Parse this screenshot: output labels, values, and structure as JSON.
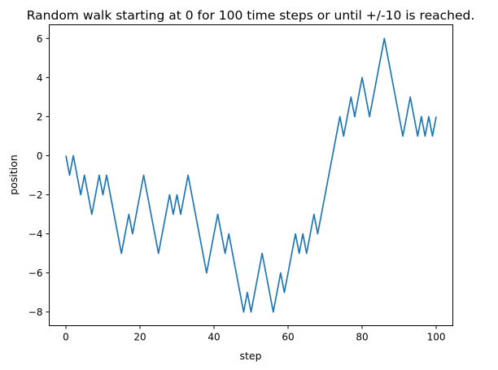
{
  "chart_data": {
    "type": "line",
    "title": "Random walk starting at 0 for 100 time steps or until +/-10 is reached.",
    "xlabel": "step",
    "ylabel": "position",
    "xlim": [
      -4.5,
      104.5
    ],
    "ylim": [
      -8.7,
      6.7
    ],
    "xticks": [
      0,
      20,
      40,
      60,
      80,
      100
    ],
    "xtick_labels": [
      "0",
      "20",
      "40",
      "60",
      "80",
      "100"
    ],
    "yticks": [
      -8,
      -6,
      -4,
      -2,
      0,
      2,
      4,
      6
    ],
    "ytick_labels": [
      "−8",
      "−6",
      "−4",
      "−2",
      "0",
      "2",
      "4",
      "6"
    ],
    "grid": false,
    "legend": "none",
    "series": [
      {
        "color": "#1f77b4",
        "x": [
          0,
          1,
          2,
          3,
          4,
          5,
          6,
          7,
          8,
          9,
          10,
          11,
          12,
          13,
          14,
          15,
          16,
          17,
          18,
          19,
          20,
          21,
          22,
          23,
          24,
          25,
          26,
          27,
          28,
          29,
          30,
          31,
          32,
          33,
          34,
          35,
          36,
          37,
          38,
          39,
          40,
          41,
          42,
          43,
          44,
          45,
          46,
          47,
          48,
          49,
          50,
          51,
          52,
          53,
          54,
          55,
          56,
          57,
          58,
          59,
          60,
          61,
          62,
          63,
          64,
          65,
          66,
          67,
          68,
          69,
          70,
          71,
          72,
          73,
          74,
          75,
          76,
          77,
          78,
          79,
          80,
          81,
          82,
          83,
          84,
          85,
          86,
          87,
          88,
          89,
          90,
          91,
          92,
          93,
          94,
          95,
          96,
          97,
          98,
          99,
          100
        ],
        "values": [
          0,
          -1,
          0,
          -1,
          -2,
          -1,
          -2,
          -3,
          -2,
          -1,
          -2,
          -1,
          -2,
          -3,
          -4,
          -5,
          -4,
          -3,
          -4,
          -3,
          -2,
          -1,
          -2,
          -3,
          -4,
          -5,
          -4,
          -3,
          -2,
          -3,
          -2,
          -3,
          -2,
          -1,
          -2,
          -3,
          -4,
          -5,
          -6,
          -5,
          -4,
          -3,
          -4,
          -5,
          -4,
          -5,
          -6,
          -7,
          -8,
          -7,
          -8,
          -7,
          -6,
          -5,
          -6,
          -7,
          -8,
          -7,
          -6,
          -7,
          -6,
          -5,
          -4,
          -5,
          -4,
          -5,
          -4,
          -3,
          -4,
          -3,
          -2,
          -1,
          0,
          1,
          2,
          1,
          2,
          3,
          2,
          3,
          4,
          3,
          2,
          3,
          4,
          5,
          6,
          5,
          4,
          3,
          2,
          1,
          2,
          3,
          2,
          1,
          2,
          1,
          2,
          1,
          2
        ]
      }
    ]
  }
}
